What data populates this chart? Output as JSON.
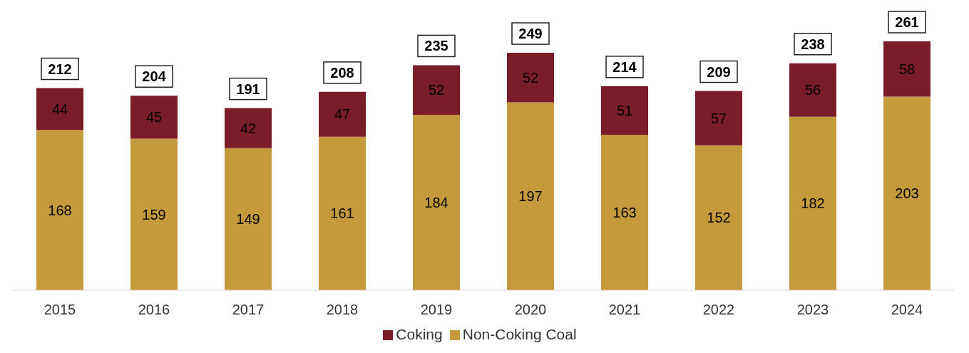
{
  "chart_data": {
    "type": "bar",
    "stacked": true,
    "categories": [
      "2015",
      "2016",
      "2017",
      "2018",
      "2019",
      "2020",
      "2021",
      "2022",
      "2023",
      "2024"
    ],
    "series": [
      {
        "name": "Non-Coking Coal",
        "color": "#c59a3c",
        "values": [
          168,
          159,
          149,
          161,
          184,
          197,
          163,
          152,
          182,
          203
        ]
      },
      {
        "name": "Coking",
        "color": "#7b1c2a",
        "values": [
          44,
          45,
          42,
          47,
          52,
          52,
          51,
          57,
          56,
          58
        ]
      }
    ],
    "data_labels": true,
    "totals": [
      "212",
      "204",
      "191",
      "208",
      "235",
      "249",
      "214",
      "209",
      "238",
      "261"
    ],
    "legend": "bottom",
    "tick_labels": "x",
    "grid": false
  }
}
